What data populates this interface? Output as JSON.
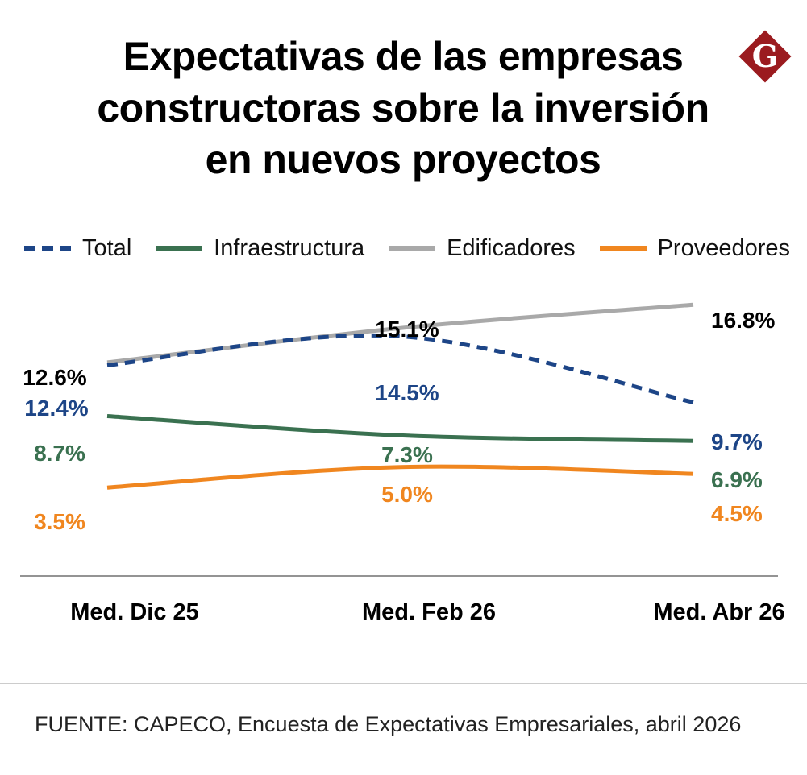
{
  "title_lines": [
    "Expectativas de las empresas",
    "constructoras sobre la inversión",
    "en nuevos proyectos"
  ],
  "logo": {
    "letter": "G",
    "color": "#9b1b1f",
    "icon": "diamond-logo-icon"
  },
  "source": "FUENTE: CAPECO, Encuesta de Expectativas Empresariales, abril 2026",
  "chart_data": {
    "type": "line",
    "title": "Expectativas de las empresas constructoras sobre la inversión en nuevos proyectos",
    "categories": [
      "Med. Dic 25",
      "Med. Feb 26",
      "Med. Abr 26"
    ],
    "ylim": [
      0,
      18
    ],
    "grid": false,
    "legend_position": "top",
    "series": [
      {
        "name": "Total",
        "values": [
          12.4,
          14.5,
          9.7
        ],
        "labels": [
          "12.4%",
          "14.5%",
          "9.7%"
        ],
        "color": "#1d4587",
        "dashed": true
      },
      {
        "name": "Infraestructura",
        "values": [
          8.7,
          7.3,
          6.9
        ],
        "labels": [
          "8.7%",
          "7.3%",
          "6.9%"
        ],
        "color": "#3a7150",
        "dashed": false
      },
      {
        "name": "Edificadores",
        "values": [
          12.6,
          15.1,
          16.8
        ],
        "labels": [
          "12.6%",
          "15.1%",
          "16.8%"
        ],
        "color": "#a9a9a9",
        "label_color": "#000000",
        "dashed": false
      },
      {
        "name": "Proveedores",
        "values": [
          3.5,
          5.0,
          4.5
        ],
        "labels": [
          "3.5%",
          "5.0%",
          "4.5%"
        ],
        "color": "#f0861f",
        "dashed": false
      }
    ]
  }
}
